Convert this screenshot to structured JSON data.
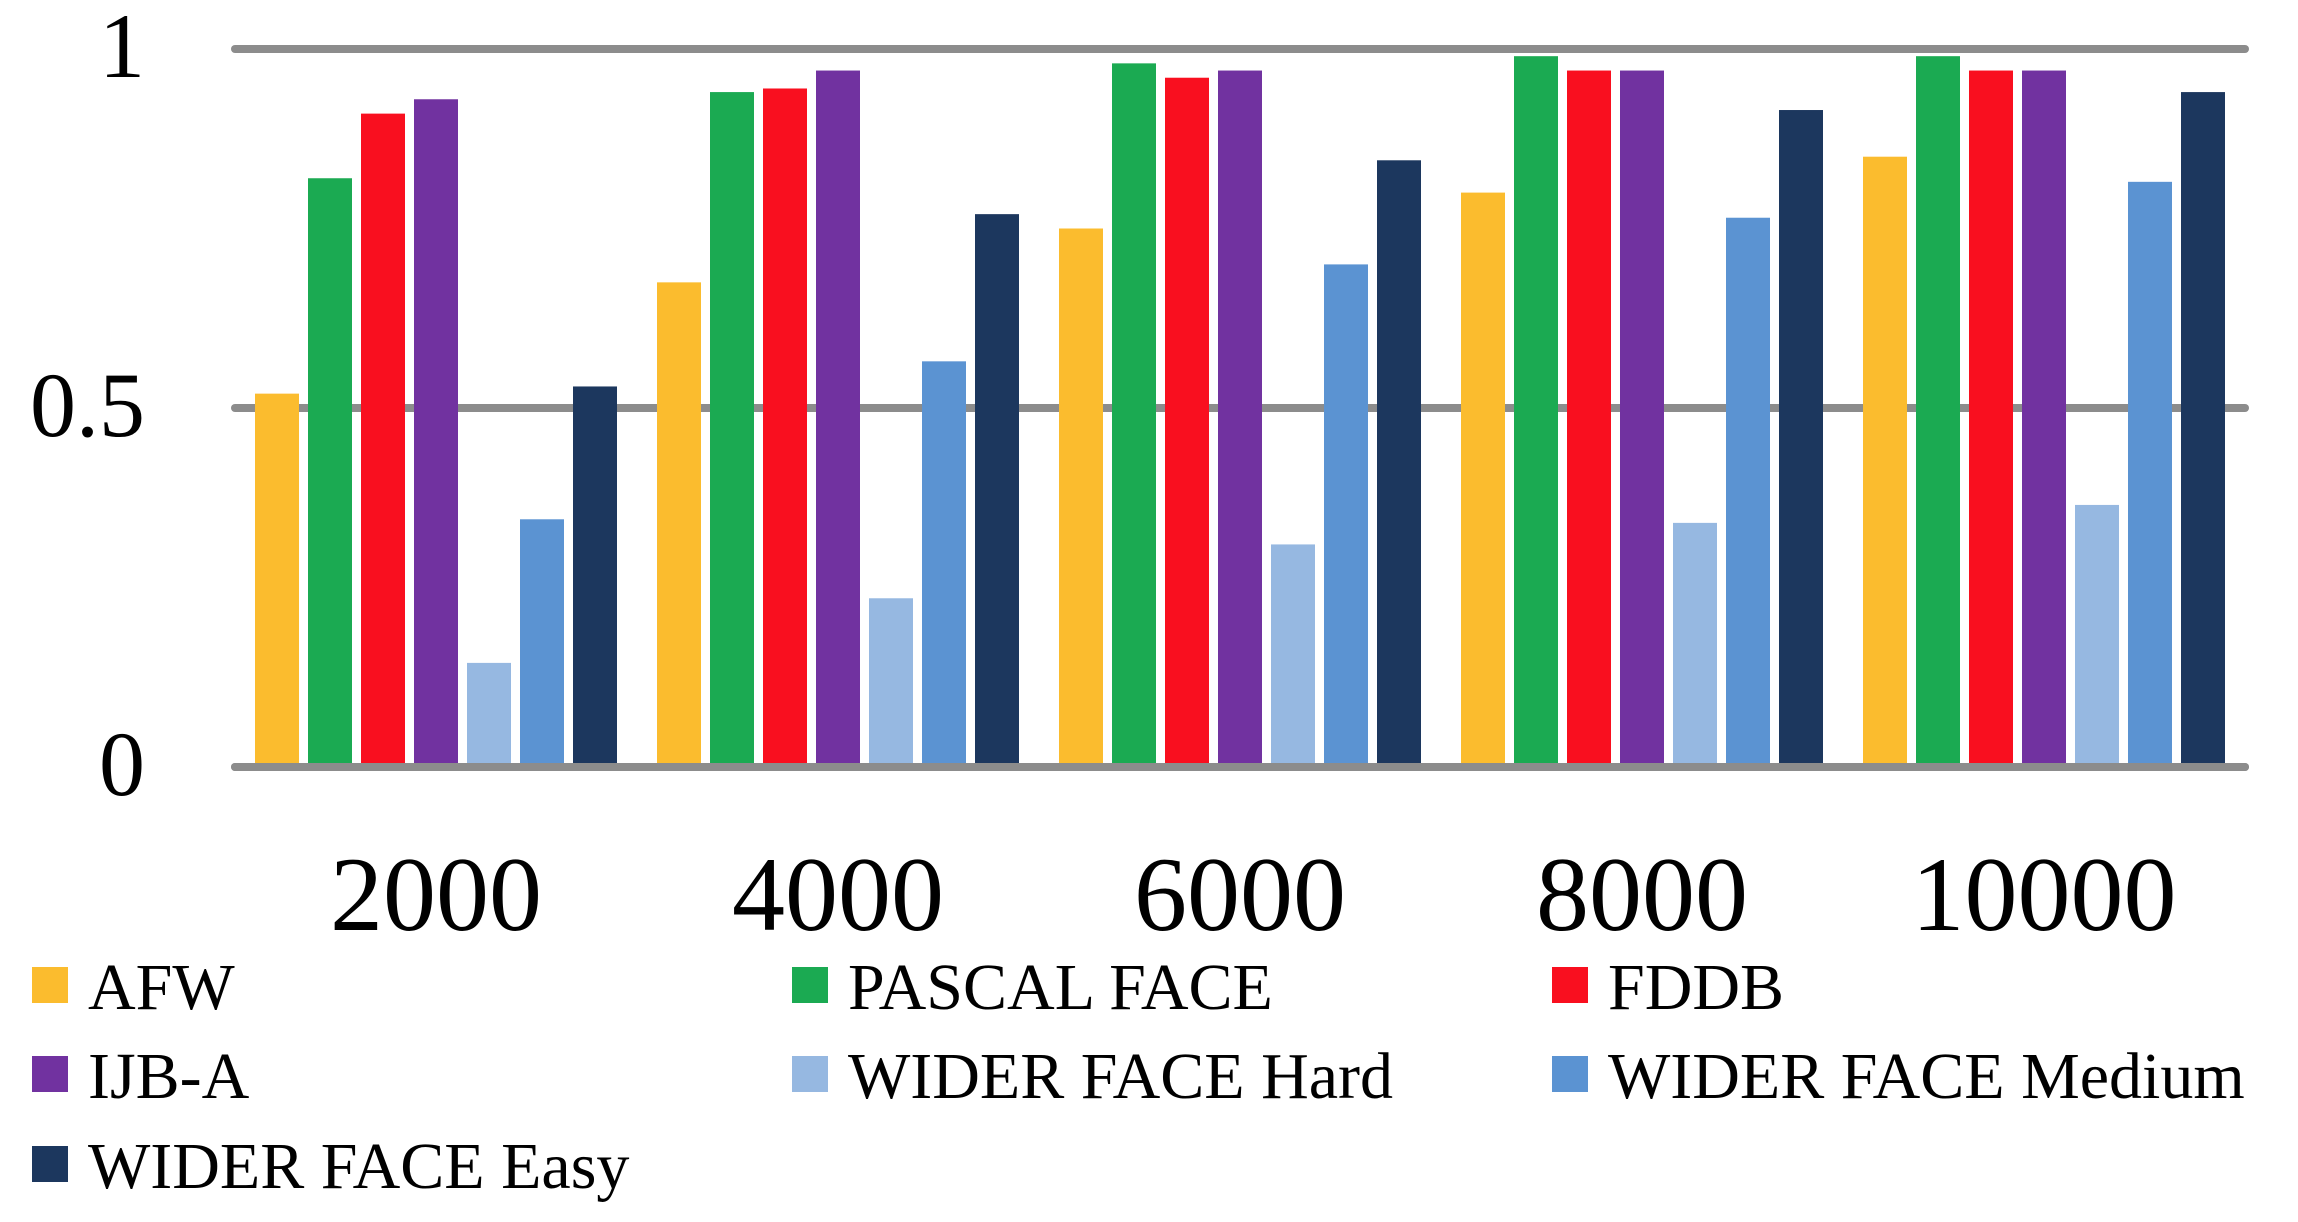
{
  "chart_data": {
    "type": "bar",
    "categories": [
      "2000",
      "4000",
      "6000",
      "8000",
      "10000"
    ],
    "series": [
      {
        "name": "AFW",
        "color": "#FBBC2E",
        "values": [
          0.52,
          0.675,
          0.75,
          0.8,
          0.85
        ]
      },
      {
        "name": "PASCAL FACE",
        "color": "#1BAA52",
        "values": [
          0.82,
          0.94,
          0.98,
          0.99,
          0.99
        ]
      },
      {
        "name": "FDDB",
        "color": "#F90F1F",
        "values": [
          0.91,
          0.945,
          0.96,
          0.97,
          0.97
        ]
      },
      {
        "name": "IJB-A",
        "color": "#7132A0",
        "values": [
          0.93,
          0.97,
          0.97,
          0.97,
          0.97
        ]
      },
      {
        "name": "WIDER FACE Hard",
        "color": "#96B8E1",
        "values": [
          0.145,
          0.235,
          0.31,
          0.34,
          0.365
        ]
      },
      {
        "name": "WIDER FACE Medium",
        "color": "#5B93D2",
        "values": [
          0.345,
          0.565,
          0.7,
          0.765,
          0.815
        ]
      },
      {
        "name": "WIDER FACE Easy",
        "color": "#1C375E",
        "values": [
          0.53,
          0.77,
          0.845,
          0.915,
          0.94
        ]
      }
    ],
    "yticks": [
      "0",
      "0.5",
      "1"
    ],
    "ylim": [
      0,
      1
    ],
    "grid": true,
    "legend_position": "bottom",
    "gridline_color": "#8C8C8C"
  }
}
